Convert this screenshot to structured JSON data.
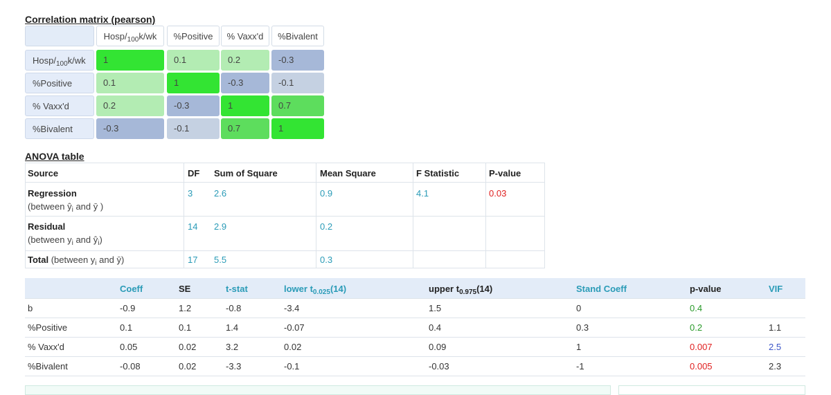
{
  "corr": {
    "title": "Correlation matrix (pearson)",
    "columns": [
      {
        "name": "Hosp/",
        "sub": "100",
        "rest": "k/wk"
      },
      {
        "name": "%Positive",
        "sub": "",
        "rest": ""
      },
      {
        "name": "% Vaxx'd",
        "sub": "",
        "rest": ""
      },
      {
        "name": "%Bivalent",
        "sub": "",
        "rest": ""
      }
    ],
    "rows": [
      {
        "label": {
          "name": "Hosp/",
          "sub": "100",
          "rest": "k/wk"
        },
        "values": [
          "1",
          "0.1",
          "0.2",
          "-0.3"
        ]
      },
      {
        "label": {
          "name": "%Positive",
          "sub": "",
          "rest": ""
        },
        "values": [
          "0.1",
          "1",
          "-0.3",
          "-0.1"
        ]
      },
      {
        "label": {
          "name": "% Vaxx'd",
          "sub": "",
          "rest": ""
        },
        "values": [
          "0.2",
          "-0.3",
          "1",
          "0.7"
        ]
      },
      {
        "label": {
          "name": "%Bivalent",
          "sub": "",
          "rest": ""
        },
        "values": [
          "-0.3",
          "-0.1",
          "0.7",
          "1"
        ]
      }
    ],
    "colors": {
      "1": "#33e433",
      "0.7": "#5ddd5d",
      "0.2": "#b3ecb3",
      "0.1": "#b3ecb3",
      "-0.1": "#c5d1e2",
      "-0.3": "#a6b8d8"
    }
  },
  "anova": {
    "title": "ANOVA table",
    "headers": {
      "source": "Source",
      "df": "DF",
      "ss": "Sum of Square",
      "ms": "Mean Square",
      "f": "F Statistic",
      "p": "P-value"
    },
    "regression": {
      "name": "Regression",
      "note": "(between ŷ",
      "note_sub": "i",
      "note_end": " and ȳ )",
      "df": "3",
      "ss": "2.6",
      "ms": "0.9",
      "f": "4.1",
      "p": "0.03"
    },
    "residual": {
      "name": "Residual",
      "note": "(between y",
      "note_sub": "i",
      "note_mid": " and ŷ",
      "note_sub2": "i",
      "note_end": ")",
      "df": "14",
      "ss": "2.9",
      "ms": "0.2"
    },
    "total": {
      "name": "Total",
      "note": " (between y",
      "note_sub": "i",
      "note_end": " and ȳ)",
      "df": "17",
      "ss": "5.5",
      "ms": "0.3"
    }
  },
  "coef": {
    "headers": {
      "coeff": "Coeff",
      "se": "SE",
      "tstat": "t-stat",
      "lower": "lower t",
      "lower_sub": "0.025",
      "lower_end": "(14)",
      "upper": "upper t",
      "upper_sub": "0.975",
      "upper_end": "(14)",
      "stand": "Stand Coeff",
      "pvalue": "p-value",
      "vif": "VIF"
    },
    "rows": [
      {
        "name": "b",
        "coeff": "-0.9",
        "se": "1.2",
        "tstat": "-0.8",
        "lower": "-3.4",
        "upper": "1.5",
        "stand": "0",
        "pvalue": "0.4",
        "vif": ""
      },
      {
        "name": "%Positive",
        "coeff": "0.1",
        "se": "0.1",
        "tstat": "1.4",
        "lower": "-0.07",
        "upper": "0.4",
        "stand": "0.3",
        "pvalue": "0.2",
        "vif": "1.1"
      },
      {
        "name": "% Vaxx'd",
        "coeff": "0.05",
        "se": "0.02",
        "tstat": "3.2",
        "lower": "0.02",
        "upper": "0.09",
        "stand": "1",
        "pvalue": "0.007",
        "vif": "2.5"
      },
      {
        "name": "%Bivalent",
        "coeff": "-0.08",
        "se": "0.02",
        "tstat": "-3.3",
        "lower": "-0.1",
        "upper": "-0.03",
        "stand": "-1",
        "pvalue": "0.005",
        "vif": "2.3"
      }
    ],
    "pvalue_colors": [
      "#2a9a2a",
      "#2a9a2a",
      "#e02020",
      "#e02020"
    ],
    "vif_colors": [
      "#333333",
      "#333333",
      "#3b55c8",
      "#333333"
    ]
  }
}
